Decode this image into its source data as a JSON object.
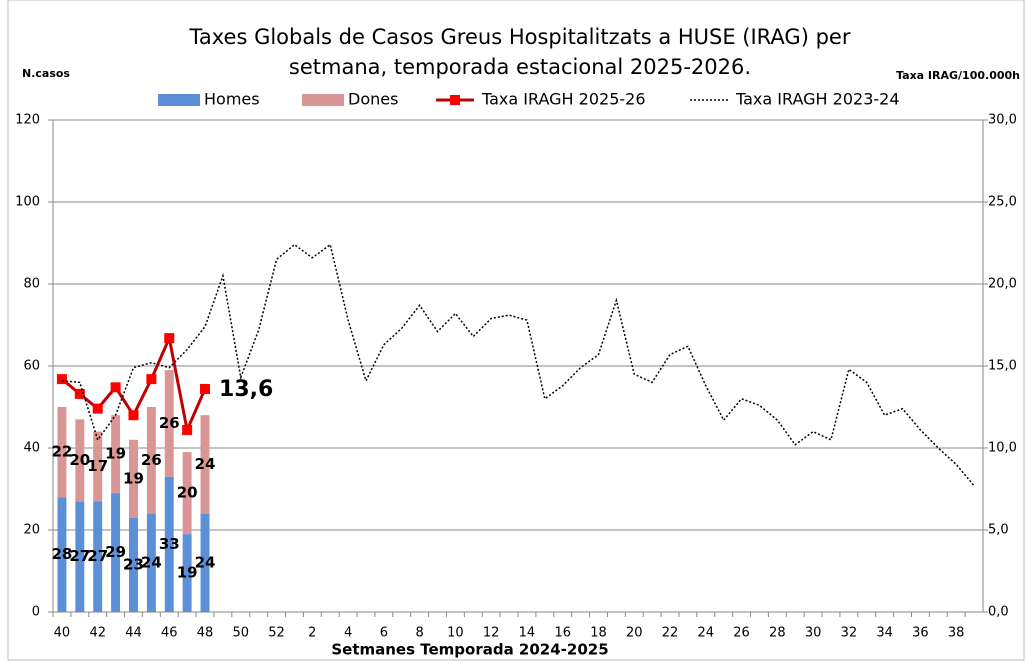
{
  "chart_data": {
    "type": "bar",
    "title": [
      "Taxes Globals  de Casos Greus Hospitalitzats a HUSE (IRAG) per",
      "setmana, temporada estacional 2025-2026."
    ],
    "y_label": "N.casos",
    "y2_label": "Taxa IRAG/100.000h",
    "x_label": "Setmanes  Temporada 2024-2025",
    "categories": [
      40,
      null,
      42,
      null,
      44,
      null,
      46,
      null,
      48,
      null,
      50,
      null,
      52,
      null,
      2,
      null,
      4,
      null,
      6,
      null,
      8,
      null,
      10,
      null,
      12,
      null,
      14,
      null,
      16,
      null,
      18,
      null,
      20,
      null,
      22,
      null,
      24,
      null,
      26,
      null,
      28,
      null,
      30,
      null,
      32,
      null,
      34,
      null,
      36,
      null,
      38,
      null
    ],
    "ylim": [
      0,
      120
    ],
    "yticks": [
      0,
      20,
      40,
      60,
      80,
      100,
      120
    ],
    "y2lim": [
      0,
      30
    ],
    "y2ticks": [
      {
        "value": 0,
        "label": "0,0"
      },
      {
        "value": 5,
        "label": "5,0"
      },
      {
        "value": 10,
        "label": "10,0"
      },
      {
        "value": 15,
        "label": "15,0"
      },
      {
        "value": 20,
        "label": "20,0"
      },
      {
        "value": 25,
        "label": "25,0"
      },
      {
        "value": 30,
        "label": "30,0"
      }
    ],
    "grid": true,
    "stacked": true,
    "series": [
      {
        "name": "Homes",
        "type": "bar",
        "color": "#5b8fd8",
        "show_values": true,
        "values": [
          28,
          27,
          27,
          29,
          23,
          24,
          33,
          19,
          24,
          null,
          null,
          null,
          null,
          null,
          null,
          null,
          null,
          null,
          null,
          null,
          null,
          null,
          null,
          null,
          null,
          null,
          null,
          null,
          null,
          null,
          null,
          null,
          null,
          null,
          null,
          null,
          null,
          null,
          null,
          null,
          null,
          null,
          null,
          null,
          null,
          null,
          null,
          null,
          null,
          null,
          null,
          null
        ]
      },
      {
        "name": "Dones",
        "type": "bar",
        "color": "#d99694",
        "show_values": true,
        "values": [
          22,
          20,
          17,
          19,
          19,
          26,
          26,
          20,
          24,
          null,
          null,
          null,
          null,
          null,
          null,
          null,
          null,
          null,
          null,
          null,
          null,
          null,
          null,
          null,
          null,
          null,
          null,
          null,
          null,
          null,
          null,
          null,
          null,
          null,
          null,
          null,
          null,
          null,
          null,
          null,
          null,
          null,
          null,
          null,
          null,
          null,
          null,
          null,
          null,
          null,
          null,
          null
        ]
      },
      {
        "name": "Taxa IRAGH 2025-26",
        "type": "line",
        "axis": "y2",
        "color": "#c00000",
        "marker": "square",
        "marker_color": "#ff0000",
        "values": [
          14.2,
          13.3,
          12.4,
          13.7,
          12.0,
          14.2,
          16.7,
          11.1,
          13.6,
          null,
          null,
          null,
          null,
          null,
          null,
          null,
          null,
          null,
          null,
          null,
          null,
          null,
          null,
          null,
          null,
          null,
          null,
          null,
          null,
          null,
          null,
          null,
          null,
          null,
          null,
          null,
          null,
          null,
          null,
          null,
          null,
          null,
          null,
          null,
          null,
          null,
          null,
          null,
          null,
          null,
          null,
          null
        ],
        "value_labels": [
          null,
          null,
          null,
          null,
          null,
          null,
          null,
          null,
          "13,6",
          null,
          null,
          null,
          null,
          null,
          null,
          null,
          null,
          null,
          null,
          null,
          null,
          null,
          null,
          null,
          null,
          null,
          null,
          null,
          null,
          null,
          null,
          null,
          null,
          null,
          null,
          null,
          null,
          null,
          null,
          null,
          null,
          null,
          null,
          null,
          null,
          null,
          null,
          null,
          null,
          null,
          null,
          null
        ]
      },
      {
        "name": "Taxa IRAGH 2023-24",
        "type": "line",
        "axis": "y2",
        "color": "#000000",
        "dash": "dotted",
        "values": [
          14.1,
          14.0,
          10.5,
          12.0,
          14.9,
          15.2,
          14.9,
          16.0,
          17.4,
          20.5,
          14.3,
          17.2,
          21.5,
          22.4,
          21.6,
          22.4,
          17.8,
          14.1,
          16.3,
          17.3,
          18.7,
          17.1,
          18.2,
          16.8,
          17.9,
          18.1,
          17.8,
          13.0,
          13.8,
          14.9,
          15.7,
          19.0,
          14.5,
          14.0,
          15.7,
          16.2,
          13.8,
          11.7,
          13.0,
          12.6,
          11.7,
          10.2,
          11.0,
          10.5,
          14.8,
          14.0,
          12.0,
          12.4,
          11.1,
          10.0,
          9.0,
          7.7
        ]
      }
    ]
  }
}
